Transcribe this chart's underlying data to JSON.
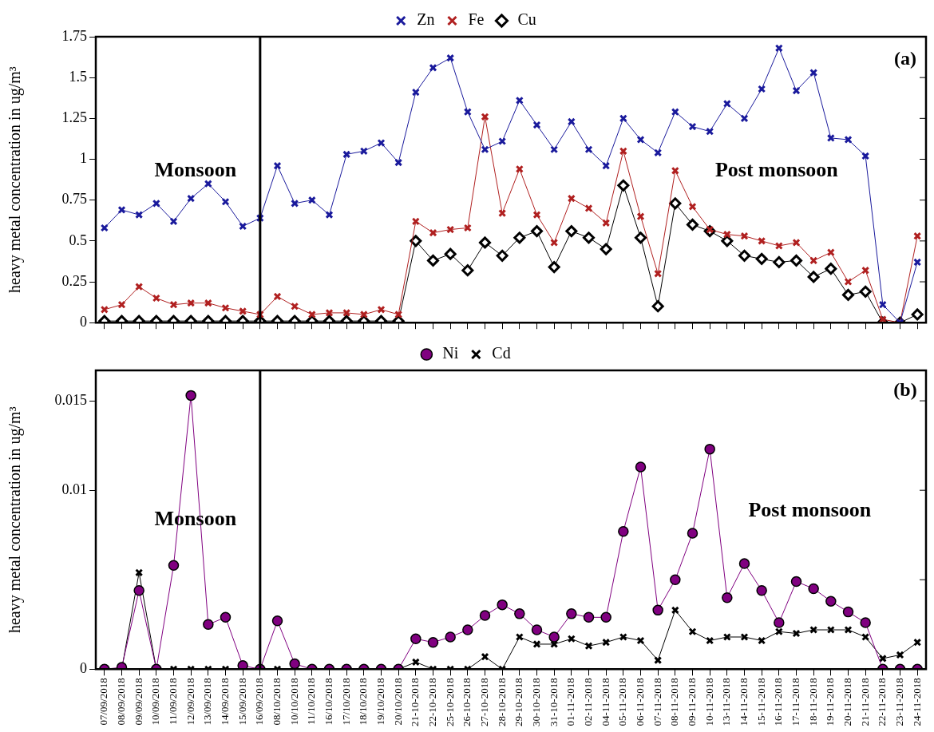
{
  "chart_data": [
    {
      "type": "line",
      "ylabel": "heavy metal concentration in ug/m³",
      "categories": [
        "07/09/2018",
        "08/09/2018",
        "09/09/2018",
        "10/09/2018",
        "11/09/2018",
        "12/09/2018",
        "13/09/2018",
        "14/09/2018",
        "15/09/2018",
        "16/09/2018",
        "08/10/2018",
        "10/10/2018",
        "11/10/2018",
        "16/10/2018",
        "17/10/2018",
        "18/10/2018",
        "19/10/2018",
        "20/10/2018",
        "21-10-2018",
        "22-10-2018",
        "25-10-2018",
        "26-10-2018",
        "27-10-2018",
        "28-10-2018",
        "29-10-2018",
        "30-10-2018",
        "31-10-2018",
        "01-11-2018",
        "02-11-2018",
        "04-11-2018",
        "05-11-2018",
        "06-11-2018",
        "07-11-2018",
        "08-11-2018",
        "09-11-2018",
        "10-11-2018",
        "13-11-2018",
        "14-11-2018",
        "15-11-2018",
        "16-11-2018",
        "17-11-2018",
        "18-11-2018",
        "19-11-2018",
        "20-11-2018",
        "21-11-2018",
        "22-11-2018",
        "23-11-2018",
        "24-11-2018"
      ],
      "series": [
        {
          "name": "Zn",
          "color": "#1a1a9c",
          "marker": "cross",
          "values": [
            0.58,
            0.69,
            0.66,
            0.73,
            0.62,
            0.76,
            0.85,
            0.74,
            0.59,
            0.64,
            0.96,
            0.73,
            0.75,
            0.66,
            1.03,
            1.05,
            1.1,
            0.98,
            1.41,
            1.56,
            1.62,
            1.29,
            1.06,
            1.11,
            1.36,
            1.21,
            1.06,
            1.23,
            1.06,
            0.96,
            1.25,
            1.12,
            1.04,
            1.29,
            1.2,
            1.17,
            1.34,
            1.25,
            1.43,
            1.68,
            1.42,
            1.53,
            1.13,
            1.12,
            1.02,
            0.11,
            0,
            0.37
          ]
        },
        {
          "name": "Fe",
          "color": "#b02020",
          "marker": "cross",
          "values": [
            0.08,
            0.11,
            0.22,
            0.15,
            0.11,
            0.12,
            0.12,
            0.09,
            0.07,
            0.05,
            0.16,
            0.1,
            0.05,
            0.06,
            0.06,
            0.05,
            0.08,
            0.05,
            0.62,
            0.55,
            0.57,
            0.58,
            1.26,
            0.67,
            0.94,
            0.66,
            0.49,
            0.76,
            0.7,
            0.61,
            1.05,
            0.65,
            0.3,
            0.93,
            0.71,
            0.57,
            0.54,
            0.53,
            0.5,
            0.47,
            0.49,
            0.38,
            0.43,
            0.25,
            0.32,
            0.02,
            0,
            0.53
          ]
        },
        {
          "name": "Cu",
          "color": "#000000",
          "marker": "diamond",
          "values": [
            0.01,
            0.01,
            0.01,
            0.01,
            0.01,
            0.01,
            0.01,
            0.01,
            0.01,
            0.01,
            0.01,
            0.01,
            0.01,
            0.01,
            0.01,
            0.01,
            0.01,
            0.01,
            0.5,
            0.38,
            0.42,
            0.32,
            0.49,
            0.41,
            0.52,
            0.56,
            0.34,
            0.56,
            0.52,
            0.45,
            0.84,
            0.52,
            0.1,
            0.73,
            0.6,
            0.56,
            0.5,
            0.41,
            0.39,
            0.37,
            0.38,
            0.28,
            0.33,
            0.17,
            0.19,
            0,
            0,
            0.05
          ]
        }
      ],
      "ylim": [
        0,
        1.75
      ],
      "yticks": [
        0,
        0.25,
        0.5,
        0.75,
        1,
        1.25,
        1.5,
        1.75
      ],
      "tick_labels": "y",
      "legend": "top",
      "ref_lines": [
        {
          "axis": "x",
          "value": "16/09/2018",
          "color": "#000000"
        }
      ],
      "annotations": [
        "Monsoon",
        "Post monsoon",
        "(a)"
      ]
    },
    {
      "type": "line",
      "ylabel": "heavy metal concentration in ug/m³",
      "categories": [
        "07/09/2018",
        "08/09/2018",
        "09/09/2018",
        "10/09/2018",
        "11/09/2018",
        "12/09/2018",
        "13/09/2018",
        "14/09/2018",
        "15/09/2018",
        "16/09/2018",
        "08/10/2018",
        "10/10/2018",
        "11/10/2018",
        "16/10/2018",
        "17/10/2018",
        "18/10/2018",
        "19/10/2018",
        "20/10/2018",
        "21-10-2018",
        "22-10-2018",
        "25-10-2018",
        "26-10-2018",
        "27-10-2018",
        "28-10-2018",
        "29-10-2018",
        "30-10-2018",
        "31-10-2018",
        "01-11-2018",
        "02-11-2018",
        "04-11-2018",
        "05-11-2018",
        "06-11-2018",
        "07-11-2018",
        "08-11-2018",
        "09-11-2018",
        "10-11-2018",
        "13-11-2018",
        "14-11-2018",
        "15-11-2018",
        "16-11-2018",
        "17-11-2018",
        "18-11-2018",
        "19-11-2018",
        "20-11-2018",
        "21-11-2018",
        "22-11-2018",
        "23-11-2018",
        "24-11-2018"
      ],
      "series": [
        {
          "name": "Ni",
          "color": "#800080",
          "marker": "circle",
          "values": [
            0,
            0.0001,
            0.0044,
            0,
            0.0058,
            0.0153,
            0.0025,
            0.0029,
            0.0002,
            0,
            0.0027,
            0.0003,
            0,
            0,
            0,
            0,
            0,
            0,
            0.0017,
            0.0015,
            0.0018,
            0.0022,
            0.003,
            0.0036,
            0.0031,
            0.0022,
            0.0018,
            0.0031,
            0.0029,
            0.0029,
            0.0077,
            0.0113,
            0.0033,
            0.005,
            0.0076,
            0.0123,
            0.004,
            0.0059,
            0.0044,
            0.0026,
            0.0049,
            0.0045,
            0.0038,
            0.0032,
            0.0026,
            0,
            0,
            0
          ]
        },
        {
          "name": "Cd",
          "color": "#000000",
          "marker": "cross",
          "values": [
            0,
            0,
            0.0054,
            0,
            0,
            0,
            0,
            0,
            0,
            0,
            0,
            0,
            0,
            0,
            0,
            0,
            0,
            0,
            0.0004,
            0,
            0,
            0,
            0.0007,
            0,
            0.0018,
            0.0014,
            0.0014,
            0.0017,
            0.0013,
            0.0015,
            0.0018,
            0.0016,
            0.0005,
            0.0033,
            0.0021,
            0.0016,
            0.0018,
            0.0018,
            0.0016,
            0.0021,
            0.002,
            0.0022,
            0.0022,
            0.0022,
            0.0018,
            0.0006,
            0.0008,
            0.0015
          ]
        }
      ],
      "ylim": [
        0,
        0.0167
      ],
      "yticks": [
        0,
        {
          "value": 0.005,
          "label": null
        },
        0.01,
        0.015
      ],
      "legend": "top",
      "ref_lines": [
        {
          "axis": "x",
          "value": "16/09/2018",
          "color": "#000000"
        }
      ],
      "annotations": [
        "Monsoon",
        "Post monsoon",
        "(b)"
      ]
    }
  ]
}
